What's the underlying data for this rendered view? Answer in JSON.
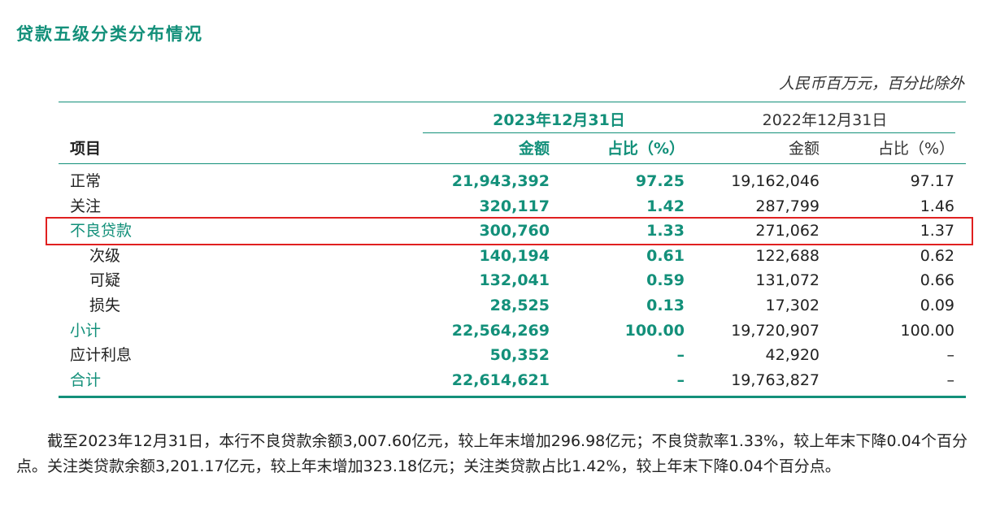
{
  "title": "贷款五级分类分布情况",
  "unit_note": "人民币百万元，百分比除外",
  "table": {
    "date_2023": "2023年12月31日",
    "date_2022": "2022年12月31日",
    "col_item": "项目",
    "col_amount_2023": "金额",
    "col_pct_2023": "占比（%）",
    "col_amount_2022": "金额",
    "col_pct_2022": "占比（%）",
    "rows": [
      {
        "label": "正常",
        "amt_2023": "21,943,392",
        "pct_2023": "97.25",
        "amt_2022": "19,162,046",
        "pct_2022": "97.17"
      },
      {
        "label": "关注",
        "amt_2023": "320,117",
        "pct_2023": "1.42",
        "amt_2022": "287,799",
        "pct_2022": "1.46"
      },
      {
        "label": "不良贷款",
        "amt_2023": "300,760",
        "pct_2023": "1.33",
        "amt_2022": "271,062",
        "pct_2022": "1.37"
      },
      {
        "label": "次级",
        "amt_2023": "140,194",
        "pct_2023": "0.61",
        "amt_2022": "122,688",
        "pct_2022": "0.62"
      },
      {
        "label": "可疑",
        "amt_2023": "132,041",
        "pct_2023": "0.59",
        "amt_2022": "131,072",
        "pct_2022": "0.66"
      },
      {
        "label": "损失",
        "amt_2023": "28,525",
        "pct_2023": "0.13",
        "amt_2022": "17,302",
        "pct_2022": "0.09"
      },
      {
        "label": "小计",
        "amt_2023": "22,564,269",
        "pct_2023": "100.00",
        "amt_2022": "19,720,907",
        "pct_2022": "100.00"
      },
      {
        "label": "应计利息",
        "amt_2023": "50,352",
        "pct_2023": "–",
        "amt_2022": "42,920",
        "pct_2022": "–"
      },
      {
        "label": "合计",
        "amt_2023": "22,614,621",
        "pct_2023": "–",
        "amt_2022": "19,763,827",
        "pct_2022": "–"
      }
    ]
  },
  "paragraph": "截至2023年12月31日，本行不良贷款余额3,007.60亿元，较上年末增加296.98亿元；不良贷款率1.33%，较上年末下降0.04个百分点。关注类贷款余额3,201.17亿元，较上年末增加323.18亿元；关注类贷款占比1.42%，较上年末下降0.04个百分点。",
  "colors": {
    "accent": "#13907a",
    "highlight": "#e02020"
  }
}
